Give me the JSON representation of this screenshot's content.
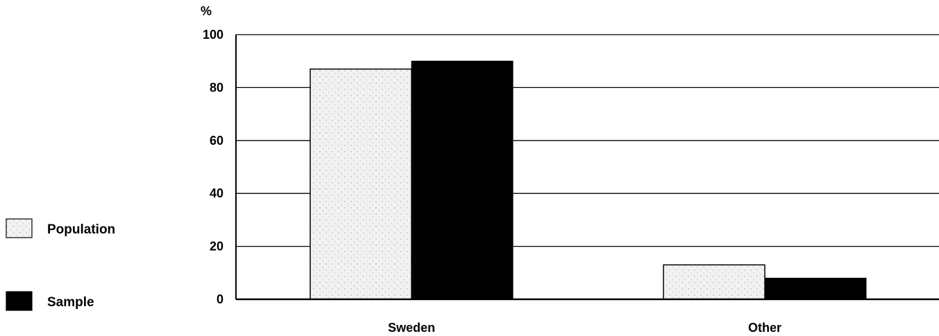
{
  "chart_data": {
    "type": "bar",
    "unit_label": "%",
    "categories": [
      "Sweden",
      "Other"
    ],
    "series": [
      {
        "name": "Population",
        "values": [
          87,
          13
        ],
        "color": "#e6e6e6",
        "pattern": "stippled-light-gray"
      },
      {
        "name": "Sample",
        "values": [
          90,
          8
        ],
        "color": "#000000",
        "pattern": "solid"
      }
    ],
    "ylim": [
      0,
      100
    ],
    "yticks": [
      0,
      20,
      40,
      60,
      80,
      100
    ],
    "grid": true,
    "legend_position": "left"
  }
}
